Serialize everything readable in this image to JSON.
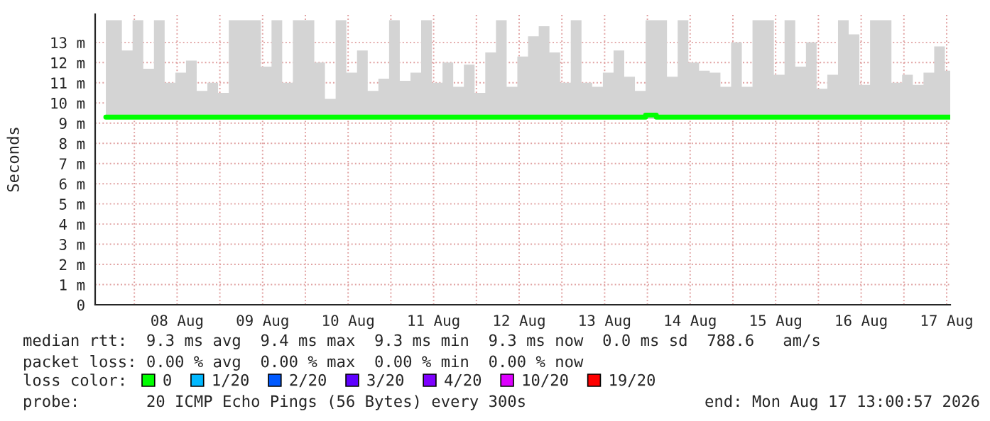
{
  "chart_data": {
    "type": "line",
    "ylabel": "Seconds",
    "x": [
      "2026-08-07T16:00",
      "2026-08-07T19:00",
      "2026-08-07T22:00",
      "2026-08-08T01:00",
      "2026-08-08T04:00",
      "2026-08-08T07:00",
      "2026-08-08T10:00",
      "2026-08-08T13:00",
      "2026-08-08T16:00",
      "2026-08-08T19:00",
      "2026-08-08T22:00",
      "2026-08-09T01:00",
      "2026-08-09T04:00",
      "2026-08-09T07:00",
      "2026-08-09T10:00",
      "2026-08-09T13:00",
      "2026-08-09T16:00",
      "2026-08-09T19:00",
      "2026-08-09T22:00",
      "2026-08-10T01:00",
      "2026-08-10T04:00",
      "2026-08-10T07:00",
      "2026-08-10T10:00",
      "2026-08-10T13:00",
      "2026-08-10T16:00",
      "2026-08-10T19:00",
      "2026-08-10T22:00",
      "2026-08-11T01:00",
      "2026-08-11T04:00",
      "2026-08-11T07:00",
      "2026-08-11T10:00",
      "2026-08-11T13:00",
      "2026-08-11T16:00",
      "2026-08-11T19:00",
      "2026-08-11T22:00",
      "2026-08-12T01:00",
      "2026-08-12T04:00",
      "2026-08-12T07:00",
      "2026-08-12T10:00",
      "2026-08-12T13:00",
      "2026-08-12T16:00",
      "2026-08-12T19:00",
      "2026-08-12T22:00",
      "2026-08-13T01:00",
      "2026-08-13T04:00",
      "2026-08-13T07:00",
      "2026-08-13T10:00",
      "2026-08-13T13:00",
      "2026-08-13T16:00",
      "2026-08-13T19:00",
      "2026-08-13T22:00",
      "2026-08-14T01:00",
      "2026-08-14T04:00",
      "2026-08-14T07:00",
      "2026-08-14T10:00",
      "2026-08-14T13:00",
      "2026-08-14T16:00",
      "2026-08-14T19:00",
      "2026-08-14T22:00",
      "2026-08-15T01:00",
      "2026-08-15T04:00",
      "2026-08-15T07:00",
      "2026-08-15T10:00",
      "2026-08-15T13:00",
      "2026-08-15T16:00",
      "2026-08-15T19:00",
      "2026-08-15T22:00",
      "2026-08-16T01:00",
      "2026-08-16T04:00",
      "2026-08-16T07:00",
      "2026-08-16T10:00",
      "2026-08-16T13:00",
      "2026-08-16T16:00",
      "2026-08-16T19:00",
      "2026-08-16T22:00",
      "2026-08-17T01:00",
      "2026-08-17T04:00",
      "2026-08-17T07:00",
      "2026-08-17T10:00",
      "2026-08-17T13:00"
    ],
    "series": [
      {
        "name": "0",
        "color": "#00ff00",
        "values": [
          9.3,
          9.3,
          9.3,
          9.3,
          9.3,
          9.3,
          9.3,
          9.3,
          9.3,
          9.3,
          9.3,
          9.3,
          9.3,
          9.3,
          9.3,
          9.3,
          9.3,
          9.3,
          9.3,
          9.3,
          9.3,
          9.3,
          9.3,
          9.3,
          9.3,
          9.3,
          9.3,
          9.3,
          9.3,
          9.3,
          9.3,
          9.3,
          9.3,
          9.3,
          9.3,
          9.3,
          9.3,
          9.3,
          9.3,
          9.3,
          9.3,
          9.3,
          9.3,
          9.3,
          9.3,
          9.3,
          9.3,
          9.3,
          9.3,
          9.3,
          9.3,
          9.4,
          9.3,
          9.3,
          9.3,
          9.3,
          9.3,
          9.3,
          9.3,
          9.3,
          9.3,
          9.3,
          9.3,
          9.3,
          9.3,
          9.3,
          9.3,
          9.3,
          9.3,
          9.3,
          9.3,
          9.3,
          9.3,
          9.3,
          9.3,
          9.3,
          9.3,
          9.3,
          9.3,
          9.3
        ],
        "lower": [
          9.2,
          9.2,
          9.2,
          9.2,
          9.2,
          9.2,
          9.2,
          9.2,
          9.2,
          9.2,
          9.2,
          9.2,
          9.2,
          9.2,
          9.2,
          9.2,
          9.2,
          9.2,
          9.2,
          9.2,
          9.2,
          9.2,
          9.2,
          9.2,
          9.2,
          9.2,
          9.2,
          9.2,
          9.2,
          9.2,
          9.2,
          9.2,
          9.2,
          9.2,
          9.2,
          9.2,
          9.2,
          9.2,
          9.2,
          9.2,
          9.2,
          9.2,
          9.2,
          9.2,
          9.2,
          9.2,
          9.2,
          9.2,
          9.2,
          9.2,
          9.2,
          9.2,
          9.2,
          9.2,
          9.2,
          9.2,
          9.2,
          9.2,
          9.2,
          9.2,
          9.2,
          9.2,
          9.2,
          9.2,
          9.2,
          9.2,
          9.2,
          9.2,
          9.2,
          9.2,
          9.2,
          9.2,
          9.2,
          9.2,
          9.2,
          9.2,
          9.2,
          9.2,
          9.2,
          9.2
        ],
        "upper": [
          14.1,
          14.1,
          12.6,
          14.1,
          11.7,
          14.1,
          11.0,
          11.5,
          12.1,
          10.6,
          11.0,
          10.5,
          14.1,
          14.1,
          14.1,
          11.8,
          14.1,
          11.0,
          14.1,
          14.1,
          12.0,
          10.2,
          14.1,
          11.5,
          12.6,
          10.6,
          11.2,
          14.1,
          11.1,
          11.5,
          14.1,
          11.0,
          12.0,
          10.8,
          11.9,
          10.5,
          12.5,
          14.1,
          10.8,
          12.3,
          13.3,
          13.8,
          12.5,
          11.0,
          14.1,
          11.0,
          10.8,
          11.5,
          12.6,
          11.3,
          10.6,
          14.1,
          14.1,
          11.3,
          14.1,
          12.0,
          11.6,
          11.5,
          10.8,
          13.0,
          10.8,
          14.1,
          14.1,
          11.4,
          14.1,
          11.8,
          13.0,
          10.7,
          11.4,
          14.1,
          13.4,
          10.9,
          14.1,
          14.1,
          11.0,
          11.4,
          10.9,
          11.5,
          12.8,
          11.6
        ]
      },
      {
        "name": "1/20",
        "color": "#00b8ff",
        "values": [
          null,
          null,
          null,
          null,
          null,
          null,
          null,
          null,
          null,
          null,
          null,
          null,
          null,
          null,
          null,
          null,
          null,
          null,
          null,
          null,
          null,
          null,
          null,
          null,
          null,
          null,
          null,
          null,
          null,
          null,
          null,
          null,
          null,
          null,
          null,
          null,
          null,
          null,
          null,
          null,
          null,
          null,
          null,
          null,
          null,
          null,
          null,
          null,
          null,
          null,
          null,
          null,
          null,
          null,
          null,
          null,
          null,
          null,
          null,
          null,
          null,
          null,
          null,
          null,
          null,
          null,
          null,
          null,
          null,
          null,
          null,
          null,
          null,
          null,
          null,
          null,
          null,
          null,
          null,
          null
        ]
      },
      {
        "name": "2/20",
        "color": "#0059ff",
        "values": [
          null,
          null,
          null,
          null,
          null,
          null,
          null,
          null,
          null,
          null,
          null,
          null,
          null,
          null,
          null,
          null,
          null,
          null,
          null,
          null,
          null,
          null,
          null,
          null,
          null,
          null,
          null,
          null,
          null,
          null,
          null,
          null,
          null,
          null,
          null,
          null,
          null,
          null,
          null,
          null,
          null,
          null,
          null,
          null,
          null,
          null,
          null,
          null,
          null,
          null,
          null,
          null,
          null,
          null,
          null,
          null,
          null,
          null,
          null,
          null,
          null,
          null,
          null,
          null,
          null,
          null,
          null,
          null,
          null,
          null,
          null,
          null,
          null,
          null,
          null,
          null,
          null,
          null,
          null,
          null
        ]
      },
      {
        "name": "3/20",
        "color": "#5e00ff",
        "values": [
          null,
          null,
          null,
          null,
          null,
          null,
          null,
          null,
          null,
          null,
          null,
          null,
          null,
          null,
          null,
          null,
          null,
          null,
          null,
          null,
          null,
          null,
          null,
          null,
          null,
          null,
          null,
          null,
          null,
          null,
          null,
          null,
          null,
          null,
          null,
          null,
          null,
          null,
          null,
          null,
          null,
          null,
          null,
          null,
          null,
          null,
          null,
          null,
          null,
          null,
          null,
          null,
          null,
          null,
          null,
          null,
          null,
          null,
          null,
          null,
          null,
          null,
          null,
          null,
          null,
          null,
          null,
          null,
          null,
          null,
          null,
          null,
          null,
          null,
          null,
          null,
          null,
          null,
          null,
          null
        ]
      },
      {
        "name": "4/20",
        "color": "#7e00ff",
        "values": [
          null,
          null,
          null,
          null,
          null,
          null,
          null,
          null,
          null,
          null,
          null,
          null,
          null,
          null,
          null,
          null,
          null,
          null,
          null,
          null,
          null,
          null,
          null,
          null,
          null,
          null,
          null,
          null,
          null,
          null,
          null,
          null,
          null,
          null,
          null,
          null,
          null,
          null,
          null,
          null,
          null,
          null,
          null,
          null,
          null,
          null,
          null,
          null,
          null,
          null,
          null,
          null,
          null,
          null,
          null,
          null,
          null,
          null,
          null,
          null,
          null,
          null,
          null,
          null,
          null,
          null,
          null,
          null,
          null,
          null,
          null,
          null,
          null,
          null,
          null,
          null,
          null,
          null,
          null,
          null
        ]
      },
      {
        "name": "10/20",
        "color": "#dd00ff",
        "values": [
          null,
          null,
          null,
          null,
          null,
          null,
          null,
          null,
          null,
          null,
          null,
          null,
          null,
          null,
          null,
          null,
          null,
          null,
          null,
          null,
          null,
          null,
          null,
          null,
          null,
          null,
          null,
          null,
          null,
          null,
          null,
          null,
          null,
          null,
          null,
          null,
          null,
          null,
          null,
          null,
          null,
          null,
          null,
          null,
          null,
          null,
          null,
          null,
          null,
          null,
          null,
          null,
          null,
          null,
          null,
          null,
          null,
          null,
          null,
          null,
          null,
          null,
          null,
          null,
          null,
          null,
          null,
          null,
          null,
          null,
          null,
          null,
          null,
          null,
          null,
          null,
          null,
          null,
          null,
          null
        ]
      },
      {
        "name": "19/20",
        "color": "#ff0000",
        "values": [
          null,
          null,
          null,
          null,
          null,
          null,
          null,
          null,
          null,
          null,
          null,
          null,
          null,
          null,
          null,
          null,
          null,
          null,
          null,
          null,
          null,
          null,
          null,
          null,
          null,
          null,
          null,
          null,
          null,
          null,
          null,
          null,
          null,
          null,
          null,
          null,
          null,
          null,
          null,
          null,
          null,
          null,
          null,
          null,
          null,
          null,
          null,
          null,
          null,
          null,
          null,
          null,
          null,
          null,
          null,
          null,
          null,
          null,
          null,
          null,
          null,
          null,
          null,
          null,
          null,
          null,
          null,
          null,
          null,
          null,
          null,
          null,
          null,
          null,
          null,
          null,
          null,
          null,
          null,
          null
        ]
      }
    ],
    "legend": "bottom left",
    "legend_title": "loss color:",
    "xlim": [
      "2026-08-07T13:00",
      "2026-08-17T13:00"
    ],
    "xticks": [
      {
        "value": "2026-08-08T00:00",
        "label": null
      },
      {
        "value": "2026-08-08T12:00",
        "label": "08 Aug"
      },
      {
        "value": "2026-08-09T00:00",
        "label": null
      },
      {
        "value": "2026-08-09T12:00",
        "label": "09 Aug"
      },
      {
        "value": "2026-08-10T00:00",
        "label": null
      },
      {
        "value": "2026-08-10T12:00",
        "label": "10 Aug"
      },
      {
        "value": "2026-08-11T00:00",
        "label": null
      },
      {
        "value": "2026-08-11T12:00",
        "label": "11 Aug"
      },
      {
        "value": "2026-08-12T00:00",
        "label": null
      },
      {
        "value": "2026-08-12T12:00",
        "label": "12 Aug"
      },
      {
        "value": "2026-08-13T00:00",
        "label": null
      },
      {
        "value": "2026-08-13T12:00",
        "label": "13 Aug"
      },
      {
        "value": "2026-08-14T00:00",
        "label": null
      },
      {
        "value": "2026-08-14T12:00",
        "label": "14 Aug"
      },
      {
        "value": "2026-08-15T00:00",
        "label": null
      },
      {
        "value": "2026-08-15T12:00",
        "label": "15 Aug"
      },
      {
        "value": "2026-08-16T00:00",
        "label": null
      },
      {
        "value": "2026-08-16T12:00",
        "label": "16 Aug"
      },
      {
        "value": "2026-08-17T00:00",
        "label": null
      },
      {
        "value": "2026-08-17T12:00",
        "label": "17 Aug"
      }
    ],
    "ylim": [
      0,
      14.4
    ],
    "yticks": [
      0,
      {
        "value": 1,
        "label": "1 m"
      },
      {
        "value": 2,
        "label": "2 m"
      },
      {
        "value": 3,
        "label": "3 m"
      },
      {
        "value": 4,
        "label": "4 m"
      },
      {
        "value": 5,
        "label": "5 m"
      },
      {
        "value": 6,
        "label": "6 m"
      },
      {
        "value": 7,
        "label": "7 m"
      },
      {
        "value": 8,
        "label": "8 m"
      },
      {
        "value": 9,
        "label": "9 m"
      },
      {
        "value": 10,
        "label": "10 m"
      },
      {
        "value": 11,
        "label": "11 m"
      },
      {
        "value": 12,
        "label": "12 m"
      },
      {
        "value": 13,
        "label": "13 m"
      }
    ],
    "grid": true,
    "marker": "none",
    "line_style": "solid",
    "annotations": [
      "median rtt:  9.3 ms avg  9.4 ms max  9.3 ms min  9.3 ms now  0.0 ms sd  788.6   am/s",
      "packet loss: 0.00 % avg  0.00 % max  0.00 % min  0.00 % now",
      "probe:       20 ICMP Echo Pings (56 Bytes) every 300s",
      "end: Mon Aug 17 13:00:57 2026"
    ]
  }
}
